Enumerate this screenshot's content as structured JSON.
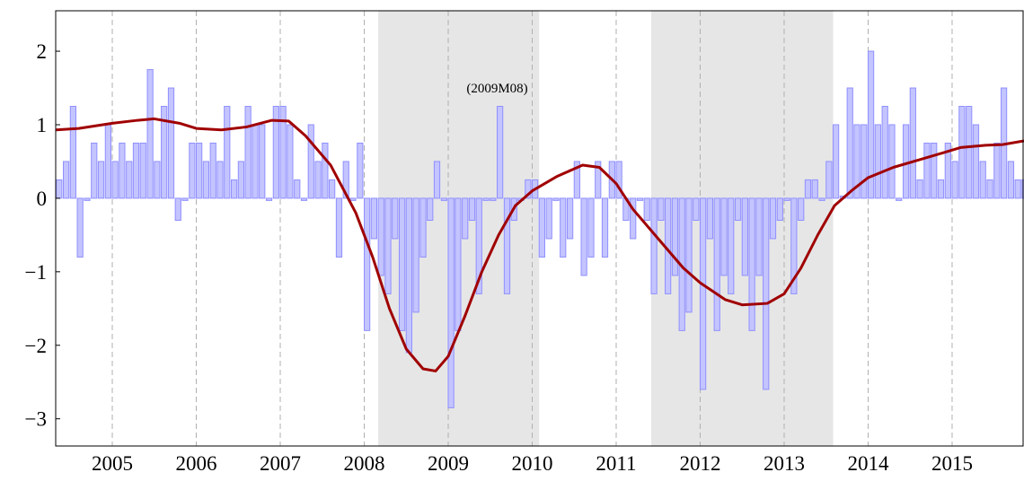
{
  "chart_data": {
    "type": "bar",
    "x": [
      2004.333,
      2004.417,
      2004.5,
      2004.583,
      2004.667,
      2004.75,
      2004.833,
      2004.917,
      2005,
      2005.083,
      2005.167,
      2005.25,
      2005.333,
      2005.417,
      2005.5,
      2005.583,
      2005.667,
      2005.75,
      2005.833,
      2005.917,
      2006,
      2006.083,
      2006.167,
      2006.25,
      2006.333,
      2006.417,
      2006.5,
      2006.583,
      2006.667,
      2006.75,
      2006.833,
      2006.917,
      2007,
      2007.083,
      2007.167,
      2007.25,
      2007.333,
      2007.417,
      2007.5,
      2007.583,
      2007.667,
      2007.75,
      2007.833,
      2007.917,
      2008,
      2008.083,
      2008.167,
      2008.25,
      2008.333,
      2008.417,
      2008.5,
      2008.583,
      2008.667,
      2008.75,
      2008.833,
      2008.917,
      2009,
      2009.083,
      2009.167,
      2009.25,
      2009.333,
      2009.417,
      2009.5,
      2009.583,
      2009.667,
      2009.75,
      2009.833,
      2009.917,
      2010,
      2010.083,
      2010.167,
      2010.25,
      2010.333,
      2010.417,
      2010.5,
      2010.583,
      2010.667,
      2010.75,
      2010.833,
      2010.917,
      2011,
      2011.083,
      2011.167,
      2011.25,
      2011.333,
      2011.417,
      2011.5,
      2011.583,
      2011.667,
      2011.75,
      2011.833,
      2011.917,
      2012,
      2012.083,
      2012.167,
      2012.25,
      2012.333,
      2012.417,
      2012.5,
      2012.583,
      2012.667,
      2012.75,
      2012.833,
      2012.917,
      2013,
      2013.083,
      2013.167,
      2013.25,
      2013.333,
      2013.417,
      2013.5,
      2013.583,
      2013.667,
      2013.75,
      2013.833,
      2013.917,
      2014,
      2014.083,
      2014.167,
      2014.25,
      2014.333,
      2014.417,
      2014.5,
      2014.583,
      2014.667,
      2014.75,
      2014.833,
      2014.917,
      2015,
      2015.083,
      2015.167,
      2015.25,
      2015.333,
      2015.417,
      2015.5,
      2015.583,
      2015.667,
      2015.75,
      2015.833
    ],
    "series": [
      {
        "type": "bar",
        "color": "#c4c4ff",
        "stroke": "#9090ff",
        "values": [
          0.25,
          0.5,
          1.25,
          -0.8,
          -0.03,
          0.75,
          0.5,
          1.0,
          0.5,
          0.75,
          0.5,
          0.75,
          0.75,
          1.75,
          0.5,
          1.25,
          1.5,
          -0.3,
          -0.03,
          0.75,
          0.75,
          0.5,
          0.75,
          0.5,
          1.25,
          0.25,
          0.5,
          1.25,
          1.0,
          1.0,
          -0.03,
          1.25,
          1.25,
          1.0,
          0.25,
          -0.03,
          1.0,
          0.5,
          0.75,
          0.25,
          -0.8,
          0.5,
          -0.03,
          0.75,
          -1.8,
          -0.55,
          -1.05,
          -1.3,
          -0.55,
          -1.8,
          -2.1,
          -1.55,
          -0.8,
          -0.3,
          0.5,
          -0.03,
          -2.85,
          -1.8,
          -0.55,
          -0.3,
          -1.3,
          -0.03,
          -0.03,
          1.25,
          -1.3,
          -0.3,
          -0.03,
          0.25,
          0.25,
          -0.8,
          -0.55,
          -0.03,
          -0.8,
          -0.55,
          0.5,
          -1.05,
          -0.8,
          0.5,
          -0.8,
          0.5,
          0.5,
          -0.3,
          -0.55,
          -0.03,
          -0.3,
          -1.3,
          -0.3,
          -1.3,
          -1.05,
          -1.8,
          -1.55,
          -0.3,
          -2.6,
          -0.55,
          -1.8,
          -1.05,
          -1.3,
          -0.3,
          -1.05,
          -1.8,
          -1.05,
          -2.6,
          -0.55,
          -0.3,
          -0.03,
          -1.3,
          -0.3,
          0.25,
          0.25,
          -0.03,
          0.5,
          1.0,
          0.03,
          1.5,
          1.0,
          1.0,
          2.0,
          1.0,
          1.25,
          1.0,
          -0.03,
          1.0,
          1.5,
          0.25,
          0.75,
          0.75,
          0.25,
          0.75,
          0.5,
          1.25,
          1.25,
          1.0,
          0.5,
          0.25,
          0.75,
          1.5,
          0.5,
          0.25,
          0.25
        ]
      },
      {
        "type": "line",
        "color": "#a00000",
        "x": [
          2004.33,
          2004.6,
          2005.0,
          2005.3,
          2005.5,
          2005.8,
          2006.0,
          2006.3,
          2006.6,
          2006.9,
          2007.1,
          2007.3,
          2007.6,
          2007.9,
          2008.1,
          2008.3,
          2008.5,
          2008.7,
          2008.85,
          2009.0,
          2009.2,
          2009.4,
          2009.6,
          2009.8,
          2010.0,
          2010.3,
          2010.6,
          2010.8,
          2011.0,
          2011.2,
          2011.5,
          2011.8,
          2012.0,
          2012.3,
          2012.5,
          2012.8,
          2013.0,
          2013.2,
          2013.4,
          2013.6,
          2013.8,
          2014.0,
          2014.3,
          2014.6,
          2014.9,
          2015.1,
          2015.4,
          2015.6,
          2015.856
        ],
        "values": [
          0.93,
          0.95,
          1.02,
          1.06,
          1.08,
          1.02,
          0.95,
          0.93,
          0.97,
          1.06,
          1.05,
          0.85,
          0.45,
          -0.2,
          -0.8,
          -1.5,
          -2.05,
          -2.32,
          -2.35,
          -2.15,
          -1.6,
          -1.0,
          -0.5,
          -0.1,
          0.1,
          0.3,
          0.45,
          0.42,
          0.2,
          -0.15,
          -0.55,
          -0.95,
          -1.15,
          -1.38,
          -1.45,
          -1.43,
          -1.3,
          -0.95,
          -0.5,
          -0.1,
          0.1,
          0.28,
          0.42,
          0.52,
          0.62,
          0.69,
          0.72,
          0.73,
          0.78
        ]
      }
    ],
    "shaded_regions": [
      [
        2008.167,
        2010.083
      ],
      [
        2011.417,
        2013.583
      ]
    ],
    "shade_color": "#e6e6e6",
    "annotations": [
      {
        "text": "(2009M08)",
        "x": 2009.583,
        "y": 1.5
      }
    ],
    "xlim": [
      2004.326,
      2015.856
    ],
    "ylim": [
      -3.37,
      2.55
    ],
    "xticks": [
      2005,
      2006,
      2007,
      2008,
      2009,
      2010,
      2011,
      2012,
      2013,
      2014,
      2015
    ],
    "yticks": [
      {
        "value": -3,
        "label": "−3"
      },
      {
        "value": -2,
        "label": "−2"
      },
      {
        "value": -1,
        "label": "−1"
      },
      0,
      1,
      2
    ],
    "grid": "x"
  }
}
